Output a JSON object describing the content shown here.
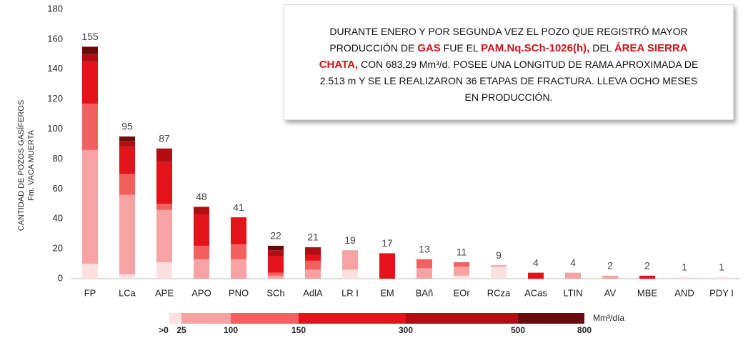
{
  "chart_data": {
    "type": "bar",
    "stacked": true,
    "ylabel": [
      "CANTIDAD DE POZOS GASÍFEROS",
      "Fm. VACA MUERTA"
    ],
    "categories": [
      "FP",
      "LCa",
      "APE",
      "APO",
      "PNO",
      "SCh",
      "AdlA",
      "LR I",
      "EM",
      "BAñ",
      "EOr",
      "RCza",
      "ACas",
      "LTIN",
      "AV",
      "MBE",
      "AND",
      "PDY I"
    ],
    "totals": [
      155,
      95,
      87,
      48,
      41,
      22,
      21,
      19,
      17,
      13,
      11,
      9,
      4,
      4,
      2,
      2,
      1,
      1
    ],
    "series": [
      {
        "color": "#fde0e0",
        "values": [
          10,
          3,
          11,
          0,
          0,
          0,
          0,
          6,
          0,
          0,
          2,
          8,
          0,
          0,
          0,
          0,
          1,
          1
        ]
      },
      {
        "color": "#f8a3a3",
        "values": [
          76,
          53,
          35,
          13,
          13,
          2,
          6,
          13,
          0,
          7,
          6,
          1,
          0,
          4,
          2,
          0,
          0,
          0
        ]
      },
      {
        "color": "#f26060",
        "values": [
          31,
          14,
          4,
          9,
          10,
          2,
          6,
          0,
          0,
          6,
          3,
          0,
          0,
          0,
          0,
          0,
          0,
          0
        ]
      },
      {
        "color": "#e3131a",
        "values": [
          28,
          18,
          28,
          21,
          18,
          11,
          4,
          0,
          17,
          0,
          0,
          0,
          4,
          0,
          0,
          2,
          0,
          0
        ]
      },
      {
        "color": "#b00e12",
        "values": [
          5,
          4,
          9,
          5,
          0,
          4,
          5,
          0,
          0,
          0,
          0,
          0,
          0,
          0,
          0,
          0,
          0,
          0
        ]
      },
      {
        "color": "#6b0a0a",
        "values": [
          5,
          3,
          0,
          0,
          0,
          3,
          0,
          0,
          0,
          0,
          0,
          0,
          0,
          0,
          0,
          0,
          0,
          0
        ]
      }
    ],
    "ylim": [
      0,
      180
    ],
    "yticks": [
      0,
      20,
      40,
      60,
      80,
      100,
      120,
      140,
      160,
      180
    ],
    "grid": false,
    "legend": {
      "unit": "Mm³/día",
      "edges": [
        {
          "value": 0,
          "label": ">0"
        },
        25,
        100,
        150,
        300,
        500,
        800
      ]
    }
  },
  "annotation": [
    {
      "text": "DURANTE ENERO Y  POR SEGUNDA VEZ EL POZO QUE REGISTRÓ MAYOR PRODUCCIÓN DE ",
      "highlight": false
    },
    {
      "text": "GAS",
      "highlight": true
    },
    {
      "text": " FUE EL ",
      "highlight": false
    },
    {
      "text": "PAM.Nq.SCh-1026(h),",
      "highlight": true
    },
    {
      "text": " DEL ",
      "highlight": false
    },
    {
      "text": "ÁREA SIERRA CHATA,",
      "highlight": true
    },
    {
      "text": " CON 683,29 Mm³/d. POSEE UNA LONGITUD DE RAMA APROXIMADA DE 2.513 m Y SE LE REALIZARON 36 ETAPAS DE FRACTURA. LLEVA OCHO MESES EN PRODUCCIÓN.",
      "highlight": false
    }
  ]
}
